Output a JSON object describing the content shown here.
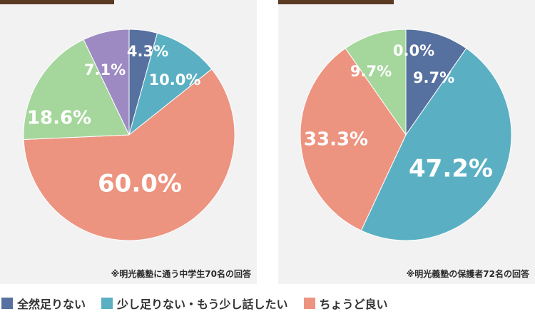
{
  "chart_data": [
    {
      "type": "pie",
      "note": "※明光義塾に通う中学生70名の回答",
      "slices": [
        {
          "value": 4.3,
          "label": "4.3%",
          "color": "#56709f"
        },
        {
          "value": 10.0,
          "label": "10.0%",
          "color": "#5ab0c2"
        },
        {
          "value": 60.0,
          "label": "60.0%",
          "color": "#ec9480"
        },
        {
          "value": 18.6,
          "label": "18.6%",
          "color": "#a5d69c"
        },
        {
          "value": 7.1,
          "label": "7.1%",
          "color": "#9d8ac3"
        }
      ]
    },
    {
      "type": "pie",
      "note": "※明光義塾の保護者72名の回答",
      "slices": [
        {
          "value": 0.0,
          "label": "0.0%",
          "color": "#9d8ac3"
        },
        {
          "value": 9.7,
          "label": "9.7%",
          "color": "#56709f"
        },
        {
          "value": 47.2,
          "label": "47.2%",
          "color": "#5ab0c2"
        },
        {
          "value": 33.3,
          "label": "33.3%",
          "color": "#ec9480"
        },
        {
          "value": 9.7,
          "label": "9.7%",
          "color": "#a5d69c"
        }
      ]
    }
  ],
  "legend": [
    {
      "label": "全然足りない",
      "color": "#56709f"
    },
    {
      "label": "少し足りない・もう少し話したい",
      "color": "#5ab0c2"
    },
    {
      "label": "ちょうど良い",
      "color": "#ec9480"
    }
  ]
}
